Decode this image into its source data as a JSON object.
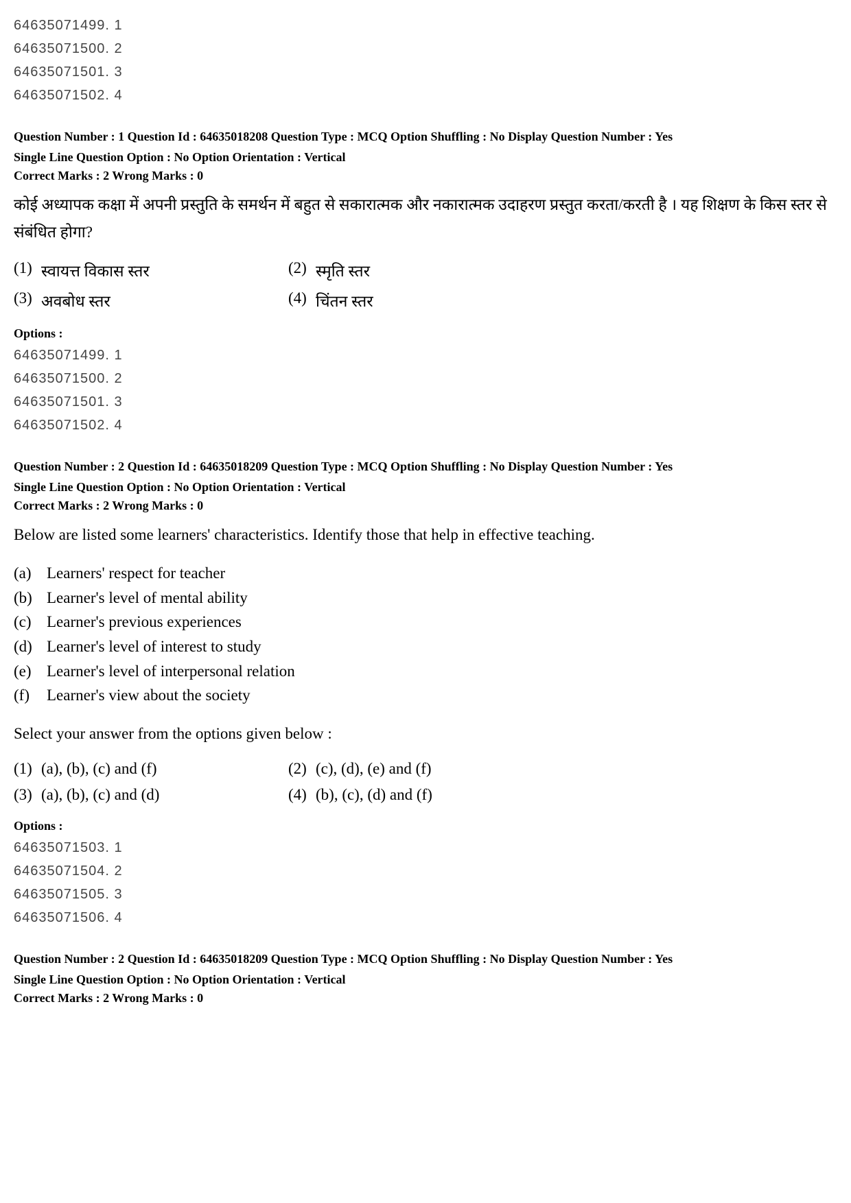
{
  "top_options": {
    "ids": [
      "64635071499. 1",
      "64635071500. 2",
      "64635071501. 3",
      "64635071502. 4"
    ]
  },
  "q1": {
    "meta_line1": "Question Number : 1  Question Id : 64635018208  Question Type : MCQ  Option Shuffling : No  Display Question Number : Yes",
    "meta_line2": "Single Line Question Option : No  Option Orientation : Vertical",
    "marks": "Correct Marks : 2  Wrong Marks : 0",
    "body": "कोई अध्यापक कक्षा में अपनी प्रस्तुति के समर्थन में बहुत से सकारात्मक और नकारात्मक उदाहरण प्रस्तुत करता/करती है । यह शिक्षण के किस स्तर से संबंधित होगा?",
    "choice1_num": "(1)",
    "choice1_txt": "स्वायत्त विकास स्तर",
    "choice2_num": "(2)",
    "choice2_txt": "स्मृति स्तर",
    "choice3_num": "(3)",
    "choice3_txt": "अवबोध स्तर",
    "choice4_num": "(4)",
    "choice4_txt": "चिंतन स्तर",
    "options_header": "Options :",
    "options_ids": {
      "0": "64635071499. 1",
      "1": "64635071500. 2",
      "2": "64635071501. 3",
      "3": "64635071502. 4"
    }
  },
  "q2": {
    "meta_line1": "Question Number : 2  Question Id : 64635018209  Question Type : MCQ  Option Shuffling : No  Display Question Number : Yes",
    "meta_line2": "Single Line Question Option : No  Option Orientation : Vertical",
    "marks": "Correct Marks : 2  Wrong Marks : 0",
    "body_intro": "Below are listed some  learners' characteristics. Identify those that help in effective teaching.",
    "list": {
      "a_n": "(a)",
      "a_t": "Learners' respect for teacher",
      "b_n": "(b)",
      "b_t": "Learner's level of mental ability",
      "c_n": "(c)",
      "c_t": "Learner's previous experiences",
      "d_n": "(d)",
      "d_t": "Learner's level of interest to study",
      "e_n": "(e)",
      "e_t": "Learner's level of interpersonal relation",
      "f_n": "(f)",
      "f_t": "Learner's view about the society"
    },
    "select_prompt": "Select your answer from the options given below :",
    "choice1_num": "(1)",
    "choice1_txt": "(a), (b), (c) and (f)",
    "choice2_num": "(2)",
    "choice2_txt": "(c), (d), (e) and (f)",
    "choice3_num": "(3)",
    "choice3_txt": "(a), (b), (c) and (d)",
    "choice4_num": "(4)",
    "choice4_txt": "(b), (c), (d) and (f)",
    "options_header": "Options :",
    "options_ids": {
      "0": "64635071503. 1",
      "1": "64635071504. 2",
      "2": "64635071505. 3",
      "3": "64635071506. 4"
    }
  },
  "q3": {
    "meta_line1": "Question Number : 2  Question Id : 64635018209  Question Type : MCQ  Option Shuffling : No  Display Question Number : Yes",
    "meta_line2": "Single Line Question Option : No  Option Orientation : Vertical",
    "marks": "Correct Marks : 2  Wrong Marks : 0"
  }
}
